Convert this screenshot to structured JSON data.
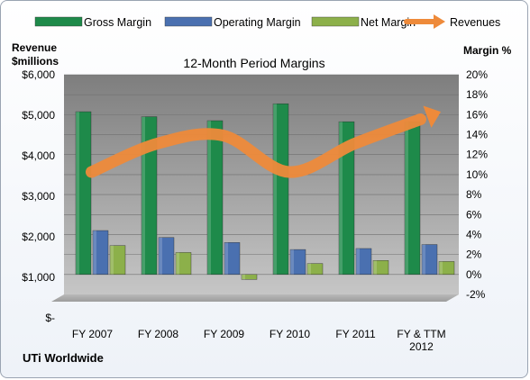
{
  "chart_data": {
    "type": "bar+line",
    "title": "12-Month Period Margins",
    "left_axis_label_line1": "Revenue",
    "left_axis_label_line2": "$millions",
    "right_axis_label": "Margin %",
    "company": "UTi Worldwide",
    "categories": [
      "FY 2007",
      "FY 2008",
      "FY 2009",
      "FY 2010",
      "FY 2011",
      "FY & TTM|2012"
    ],
    "left_axis": {
      "min": 0,
      "max": 6000,
      "ticks": [
        "$-",
        "$1,000",
        "$2,000",
        "$3,000",
        "$4,000",
        "$5,000",
        "$6,000"
      ]
    },
    "right_axis": {
      "min": -2,
      "max": 20,
      "ticks": [
        "-2%",
        "0%",
        "2%",
        "4%",
        "6%",
        "8%",
        "10%",
        "12%",
        "14%",
        "16%",
        "18%",
        "20%"
      ]
    },
    "series": [
      {
        "name": "Gross Margin",
        "axis": "right",
        "kind": "bar",
        "color": "#1e8a4a",
        "values": [
          16.3,
          15.8,
          15.4,
          17.1,
          15.3,
          15.3
        ]
      },
      {
        "name": "Operating Margin",
        "axis": "right",
        "kind": "bar",
        "color": "#4a70b0",
        "values": [
          4.4,
          3.7,
          3.2,
          2.5,
          2.6,
          3.0
        ]
      },
      {
        "name": "Net Margin",
        "axis": "right",
        "kind": "bar",
        "color": "#8cb04a",
        "values": [
          2.9,
          2.2,
          -0.5,
          1.1,
          1.4,
          1.3
        ]
      },
      {
        "name": "Revenues",
        "axis": "left",
        "kind": "line",
        "color": "#ee8a3a",
        "values": [
          3600,
          4300,
          4500,
          3600,
          4300,
          4900
        ]
      }
    ]
  }
}
